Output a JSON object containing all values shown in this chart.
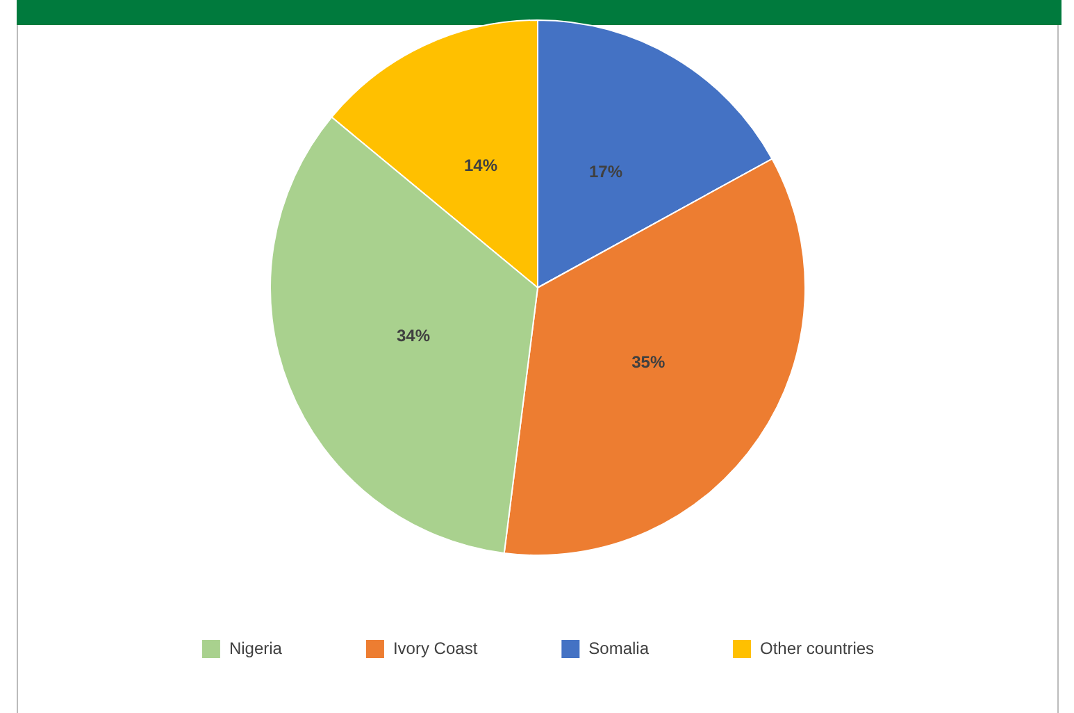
{
  "chart_data": {
    "type": "pie",
    "categories": [
      "Nigeria",
      "Ivory Coast",
      "Somalia",
      "Other countries"
    ],
    "values": [
      34,
      35,
      17,
      14
    ],
    "colors": [
      "#a9d18e",
      "#ed7d31",
      "#4472c4",
      "#ffc000"
    ],
    "value_labels": [
      "34%",
      "35%",
      "17%",
      "14%"
    ],
    "legend": "bottom"
  }
}
